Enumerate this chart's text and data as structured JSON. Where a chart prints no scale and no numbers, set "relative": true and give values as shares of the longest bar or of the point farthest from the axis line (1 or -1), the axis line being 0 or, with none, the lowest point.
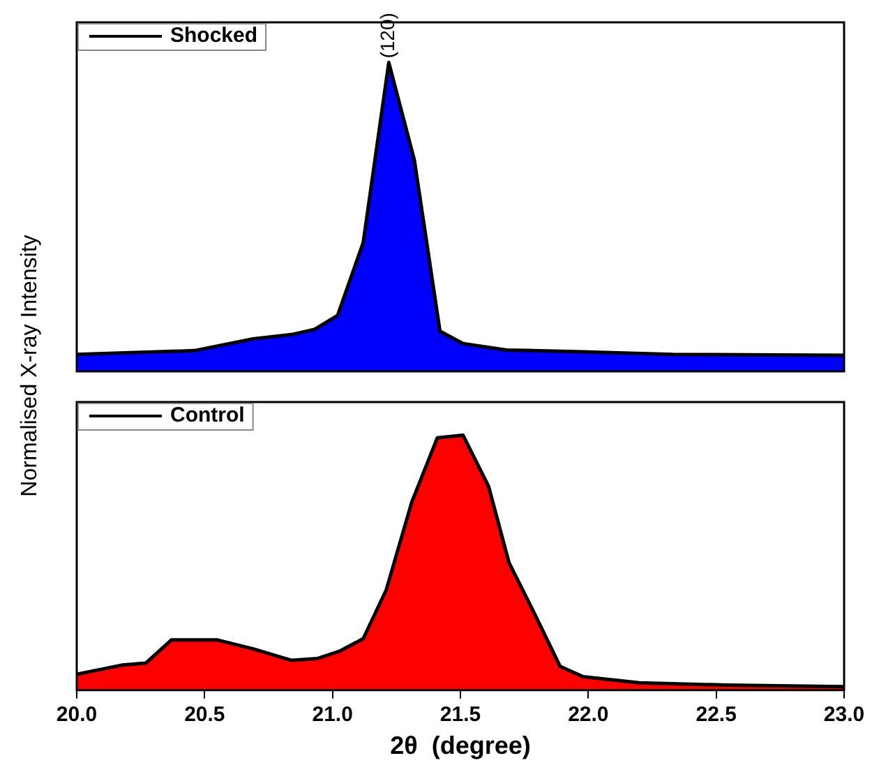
{
  "chart_data": [
    {
      "type": "area",
      "relative": true,
      "ylabel": "Normalised X-ray Intensity",
      "xlim": [
        20.0,
        23.0
      ],
      "tick_labels": false,
      "grid": false,
      "legend": "top left",
      "marker": "none",
      "annotations": [
        {
          "text": "(120)",
          "x": 21.22,
          "y": 1.0
        }
      ],
      "series": [
        {
          "name": "Shocked",
          "color": "#0000ff",
          "x": [
            20.0,
            20.46,
            20.69,
            20.84,
            20.93,
            21.02,
            21.12,
            21.22,
            21.32,
            21.42,
            21.51,
            21.68,
            21.95,
            22.33,
            23.0
          ],
          "values": [
            0.055,
            0.067,
            0.105,
            0.119,
            0.136,
            0.181,
            0.417,
            1.0,
            0.684,
            0.13,
            0.09,
            0.069,
            0.064,
            0.055,
            0.052
          ]
        }
      ]
    },
    {
      "type": "area",
      "relative": true,
      "xlabel": "2θ  (degree)",
      "xlim": [
        20.0,
        23.0
      ],
      "xticks": [
        {
          "value": 20.0,
          "label": "20.0"
        },
        {
          "value": 20.5,
          "label": "20.5"
        },
        {
          "value": 21.0,
          "label": "21.0"
        },
        {
          "value": 21.5,
          "label": "21.5"
        },
        {
          "value": 22.0,
          "label": "22.0"
        },
        {
          "value": 22.5,
          "label": "22.5"
        },
        {
          "value": 23.0,
          "label": "23.0"
        }
      ],
      "tick_labels": "x",
      "grid": false,
      "legend": "top left",
      "marker": "none",
      "series": [
        {
          "name": "Control",
          "color": "#ff0000",
          "x": [
            20.0,
            20.18,
            20.27,
            20.37,
            20.55,
            20.69,
            20.84,
            20.94,
            21.03,
            21.12,
            21.21,
            21.31,
            21.41,
            21.51,
            21.61,
            21.69,
            21.78,
            21.89,
            21.98,
            22.2,
            22.54,
            23.0
          ],
          "values": [
            0.062,
            0.099,
            0.106,
            0.197,
            0.197,
            0.162,
            0.117,
            0.124,
            0.154,
            0.202,
            0.393,
            0.738,
            0.99,
            1.0,
            0.8,
            0.5,
            0.32,
            0.093,
            0.053,
            0.029,
            0.02,
            0.014
          ]
        }
      ]
    }
  ]
}
